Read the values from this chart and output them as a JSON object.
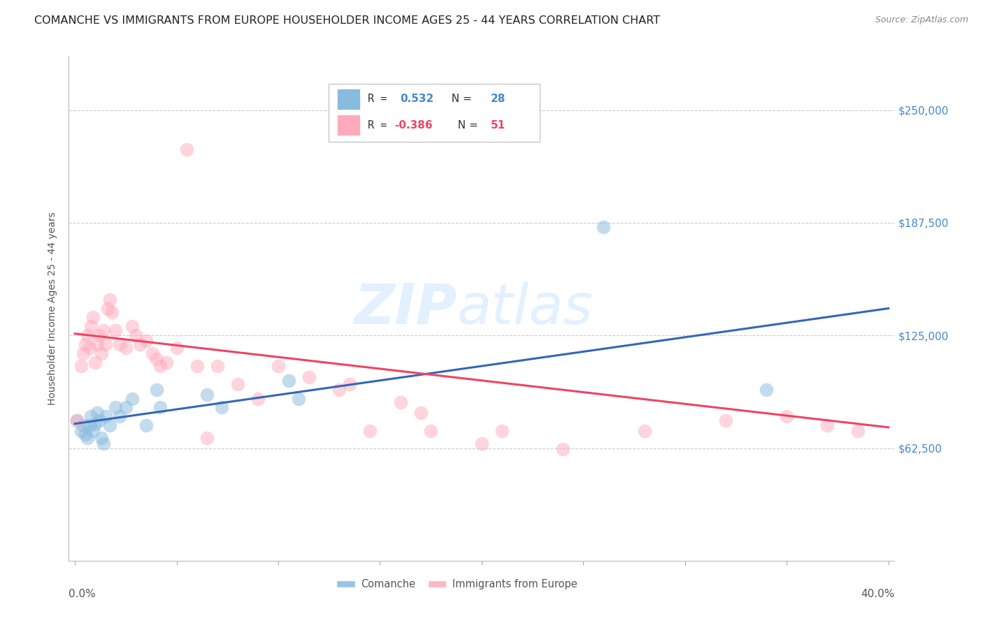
{
  "title": "COMANCHE VS IMMIGRANTS FROM EUROPE HOUSEHOLDER INCOME AGES 25 - 44 YEARS CORRELATION CHART",
  "source": "Source: ZipAtlas.com",
  "ylabel": "Householder Income Ages 25 - 44 years",
  "ytick_labels": [
    "$62,500",
    "$125,000",
    "$187,500",
    "$250,000"
  ],
  "ytick_values": [
    62500,
    125000,
    187500,
    250000
  ],
  "watermark_zip": "ZIP",
  "watermark_atlas": "atlas",
  "blue_scatter_x": [
    0.001,
    0.003,
    0.004,
    0.005,
    0.006,
    0.007,
    0.008,
    0.009,
    0.01,
    0.011,
    0.012,
    0.013,
    0.014,
    0.015,
    0.017,
    0.02,
    0.022,
    0.025,
    0.028,
    0.035,
    0.04,
    0.042,
    0.065,
    0.072,
    0.105,
    0.11,
    0.26,
    0.34
  ],
  "blue_scatter_y": [
    78000,
    72000,
    75000,
    70000,
    68000,
    75000,
    80000,
    72000,
    76000,
    82000,
    78000,
    68000,
    65000,
    80000,
    75000,
    85000,
    80000,
    85000,
    90000,
    75000,
    95000,
    85000,
    92000,
    85000,
    100000,
    90000,
    185000,
    95000
  ],
  "pink_scatter_x": [
    0.001,
    0.003,
    0.004,
    0.005,
    0.006,
    0.007,
    0.008,
    0.009,
    0.01,
    0.011,
    0.012,
    0.013,
    0.014,
    0.015,
    0.016,
    0.017,
    0.018,
    0.02,
    0.022,
    0.025,
    0.028,
    0.03,
    0.032,
    0.035,
    0.038,
    0.04,
    0.042,
    0.045,
    0.05,
    0.055,
    0.06,
    0.065,
    0.07,
    0.08,
    0.09,
    0.1,
    0.115,
    0.13,
    0.135,
    0.145,
    0.16,
    0.17,
    0.175,
    0.2,
    0.21,
    0.24,
    0.28,
    0.32,
    0.35,
    0.37,
    0.385
  ],
  "pink_scatter_y": [
    78000,
    108000,
    115000,
    120000,
    125000,
    118000,
    130000,
    135000,
    110000,
    120000,
    125000,
    115000,
    128000,
    120000,
    140000,
    145000,
    138000,
    128000,
    120000,
    118000,
    130000,
    125000,
    120000,
    122000,
    115000,
    112000,
    108000,
    110000,
    118000,
    228000,
    108000,
    68000,
    108000,
    98000,
    90000,
    108000,
    102000,
    95000,
    98000,
    72000,
    88000,
    82000,
    72000,
    65000,
    72000,
    62000,
    72000,
    78000,
    80000,
    75000,
    72000
  ],
  "blue_line_x": [
    0.0,
    0.4
  ],
  "blue_line_y": [
    76000,
    140000
  ],
  "pink_line_x": [
    0.0,
    0.4
  ],
  "pink_line_y": [
    126000,
    74000
  ],
  "xlim": [
    -0.003,
    0.403
  ],
  "ylim": [
    0,
    280000
  ],
  "bg_color": "#FFFFFF",
  "grid_color": "#CCCCCC",
  "blue_color": "#88BBDD",
  "pink_color": "#FFAABB",
  "blue_line_color": "#3366BB",
  "pink_line_color": "#EE4466",
  "scatter_size": 200,
  "scatter_alpha": 0.5,
  "title_fontsize": 11.5,
  "source_fontsize": 9,
  "label_fontsize": 10,
  "tick_fontsize": 11,
  "ytick_color": "#4488CC",
  "legend_r1": "R =  0.532",
  "legend_n1": "N = 28",
  "legend_r2": "R = -0.386",
  "legend_n2": "N = 51",
  "legend_r1_color": "#4488CC",
  "legend_r2_color": "#EE4466",
  "bottom_label1": "Comanche",
  "bottom_label2": "Immigrants from Europe"
}
